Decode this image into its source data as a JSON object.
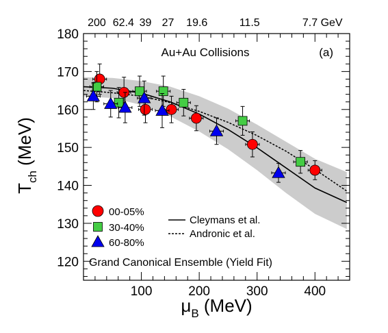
{
  "chart_data": {
    "type": "scatter",
    "title": "",
    "xlabel": "μ",
    "xlabel_sub": "B",
    "xlabel_unit": " (MeV)",
    "ylabel": "T",
    "ylabel_sub": "ch",
    "ylabel_unit": " (MeV)",
    "xlim": [
      0,
      460
    ],
    "ylim": [
      115,
      180
    ],
    "x_ticks": [
      100,
      200,
      300,
      400
    ],
    "y_ticks": [
      120,
      130,
      140,
      150,
      160,
      170,
      180
    ],
    "top_axis_labels": [
      {
        "text": "200",
        "x": 23
      },
      {
        "text": "62.4",
        "x": 69
      },
      {
        "text": "39",
        "x": 107
      },
      {
        "text": "27",
        "x": 146
      },
      {
        "text": "19.6",
        "x": 196
      },
      {
        "text": "11.5",
        "x": 287
      },
      {
        "text": "7.7 GeV",
        "x": 413
      }
    ],
    "annotations": {
      "system": "Au+Au Collisions",
      "panel": "(a)",
      "method": "Grand Canonical Ensemble (Yield Fit)"
    },
    "legend_placement": "bottom-left",
    "series": [
      {
        "name": "00-05%",
        "marker": "circle",
        "color": "#ff0000",
        "points": [
          {
            "x": 28,
            "y": 168.0,
            "err": 4.0
          },
          {
            "x": 70,
            "y": 164.5,
            "err": 4.0
          },
          {
            "x": 107,
            "y": 160.0,
            "err": 3.5
          },
          {
            "x": 152,
            "y": 160.0,
            "err": 3.5
          },
          {
            "x": 195,
            "y": 157.7,
            "err": 3.3
          },
          {
            "x": 292,
            "y": 150.8,
            "err": 3.3
          },
          {
            "x": 400,
            "y": 144.0,
            "err": 2.5
          }
        ]
      },
      {
        "name": "30-40%",
        "marker": "square",
        "color": "#44cc44",
        "points": [
          {
            "x": 23,
            "y": 166.0,
            "err": 4.0
          },
          {
            "x": 61,
            "y": 161.8,
            "err": 4.0
          },
          {
            "x": 97,
            "y": 164.8,
            "err": 4.0
          },
          {
            "x": 138,
            "y": 164.8,
            "err": 4.0
          },
          {
            "x": 173,
            "y": 161.8,
            "err": 3.5
          },
          {
            "x": 275,
            "y": 157.0,
            "err": 3.8
          },
          {
            "x": 375,
            "y": 146.2,
            "err": 3.0
          }
        ]
      },
      {
        "name": "60-80%",
        "marker": "triangle",
        "color": "#0000ee",
        "points": [
          {
            "x": 17,
            "y": 163.5,
            "err": 3.5
          },
          {
            "x": 47,
            "y": 161.5,
            "err": 3.5
          },
          {
            "x": 72,
            "y": 160.5,
            "err": 4.0
          },
          {
            "x": 105,
            "y": 163.0,
            "err": 4.5
          },
          {
            "x": 136,
            "y": 159.7,
            "err": 4.5
          },
          {
            "x": 230,
            "y": 154.3,
            "err": 3.5
          },
          {
            "x": 337,
            "y": 143.3,
            "err": 2.5
          }
        ]
      }
    ],
    "curves": [
      {
        "name": "Cleymans et al.",
        "style": "solid",
        "x": [
          0,
          50,
          100,
          150,
          200,
          250,
          300,
          350,
          400,
          455
        ],
        "y": [
          166.0,
          165.6,
          164.3,
          162.0,
          158.8,
          154.7,
          149.9,
          144.6,
          139.3,
          135.5
        ]
      },
      {
        "name": "Andronic et al.",
        "style": "dashed",
        "x": [
          0,
          50,
          100,
          150,
          200,
          250,
          300,
          350,
          400,
          455
        ],
        "y": [
          165.0,
          164.4,
          163.5,
          161.8,
          159.5,
          156.6,
          153.1,
          149.0,
          144.2,
          138.5
        ]
      }
    ],
    "band": {
      "color": "#cccccc",
      "x": [
        0,
        50,
        100,
        150,
        200,
        250,
        300,
        350,
        400,
        455
      ],
      "upper": [
        168.5,
        168.3,
        167.5,
        166.0,
        163.5,
        160.2,
        156.0,
        151.5,
        147.0,
        143.5
      ],
      "lower": [
        163.5,
        163.0,
        161.2,
        158.2,
        154.2,
        149.5,
        144.0,
        138.0,
        132.5,
        128.5
      ]
    }
  }
}
